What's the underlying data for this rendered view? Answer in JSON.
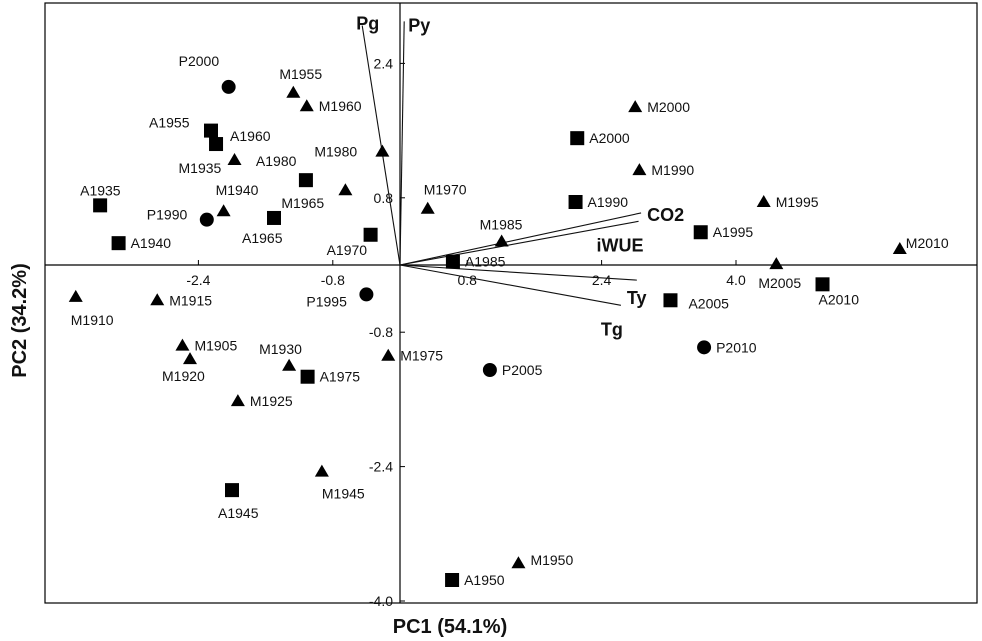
{
  "chart_data": {
    "type": "scatter",
    "xlabel": "PC1 (54.1%)",
    "ylabel": "PC2 (34.2%)",
    "xlim": [
      -3.2,
      5.2
    ],
    "ylim": [
      -4.0,
      2.9
    ],
    "x_ticks": [
      {
        "value": -2.4,
        "label": "-2.4"
      },
      {
        "value": -0.8,
        "label": "-0.8"
      },
      {
        "value": 0.8,
        "label": "0.8"
      },
      {
        "value": 2.4,
        "label": "2.4"
      },
      {
        "value": 4.0,
        "label": "4.0"
      }
    ],
    "y_ticks": [
      {
        "value": 2.4,
        "label": "2.4"
      },
      {
        "value": 0.8,
        "label": "0.8"
      },
      {
        "value": -0.8,
        "label": "-0.8"
      },
      {
        "value": -2.4,
        "label": "-2.4"
      },
      {
        "value": -4.0,
        "label": "-4.0"
      }
    ],
    "grid": false,
    "legend": false,
    "series": [
      {
        "marker": "square",
        "points": [
          {
            "label": "A1935",
            "x": -3.57,
            "y": 0.71
          },
          {
            "label": "A1940",
            "x": -3.35,
            "y": 0.26
          },
          {
            "label": "A1945",
            "x": -2.0,
            "y": -2.68
          },
          {
            "label": "A1950",
            "x": 0.62,
            "y": -3.75
          },
          {
            "label": "A1955",
            "x": -2.25,
            "y": 1.6
          },
          {
            "label": "A1960",
            "x": -2.19,
            "y": 1.44
          },
          {
            "label": "A1965",
            "x": -1.5,
            "y": 0.56
          },
          {
            "label": "A1970",
            "x": -0.35,
            "y": 0.36
          },
          {
            "label": "A1975",
            "x": -1.1,
            "y": -1.33
          },
          {
            "label": "A1980",
            "x": -1.12,
            "y": 1.01
          },
          {
            "label": "A1985",
            "x": 0.63,
            "y": 0.04
          },
          {
            "label": "A1990",
            "x": 2.09,
            "y": 0.75
          },
          {
            "label": "A1995",
            "x": 3.58,
            "y": 0.39
          },
          {
            "label": "A2000",
            "x": 2.11,
            "y": 1.51
          },
          {
            "label": "A2005",
            "x": 3.22,
            "y": -0.42
          },
          {
            "label": "A2010",
            "x": 5.03,
            "y": -0.23
          }
        ]
      },
      {
        "marker": "triangle",
        "points": [
          {
            "label": "M1905",
            "x": -2.59,
            "y": -0.96
          },
          {
            "label": "M1910",
            "x": -3.86,
            "y": -0.38
          },
          {
            "label": "M1915",
            "x": -2.89,
            "y": -0.42
          },
          {
            "label": "M1920",
            "x": -2.5,
            "y": -1.12
          },
          {
            "label": "M1925",
            "x": -1.93,
            "y": -1.62
          },
          {
            "label": "M1930",
            "x": -1.32,
            "y": -1.2
          },
          {
            "label": "M1935",
            "x": -1.97,
            "y": 1.25
          },
          {
            "label": "M1940",
            "x": -2.1,
            "y": 0.64
          },
          {
            "label": "M1945",
            "x": -0.93,
            "y": -2.46
          },
          {
            "label": "M1950",
            "x": 1.41,
            "y": -3.55
          },
          {
            "label": "M1955",
            "x": -1.27,
            "y": 2.05
          },
          {
            "label": "M1960",
            "x": -1.11,
            "y": 1.89
          },
          {
            "label": "M1965",
            "x": -0.65,
            "y": 0.89
          },
          {
            "label": "M1970",
            "x": 0.33,
            "y": 0.67
          },
          {
            "label": "M1975",
            "x": -0.14,
            "y": -1.08
          },
          {
            "label": "M1980",
            "x": -0.21,
            "y": 1.35
          },
          {
            "label": "M1985",
            "x": 1.21,
            "y": 0.28
          },
          {
            "label": "M1990",
            "x": 2.85,
            "y": 1.13
          },
          {
            "label": "M1995",
            "x": 4.33,
            "y": 0.75
          },
          {
            "label": "M2000",
            "x": 2.8,
            "y": 1.88
          },
          {
            "label": "M2005",
            "x": 4.48,
            "y": 0.01
          },
          {
            "label": "M2010",
            "x": 5.95,
            "y": 0.19
          }
        ]
      },
      {
        "marker": "circle",
        "points": [
          {
            "label": "P1990",
            "x": -2.3,
            "y": 0.54
          },
          {
            "label": "P1995",
            "x": -0.4,
            "y": -0.35
          },
          {
            "label": "P2000",
            "x": -2.04,
            "y": 2.12
          },
          {
            "label": "P2005",
            "x": 1.07,
            "y": -1.25
          },
          {
            "label": "P2010",
            "x": 3.62,
            "y": -0.98
          }
        ]
      }
    ],
    "vectors": [
      {
        "label": "Pg",
        "x": -0.45,
        "y": 2.85
      },
      {
        "label": "Py",
        "x": 0.05,
        "y": 2.9
      },
      {
        "label": "CO2",
        "x": 2.87,
        "y": 0.62
      },
      {
        "label": "iWUE",
        "x": 2.84,
        "y": 0.52
      },
      {
        "label": "Ty",
        "x": 2.82,
        "y": -0.18
      },
      {
        "label": "Tg",
        "x": 2.63,
        "y": -0.48
      }
    ]
  }
}
